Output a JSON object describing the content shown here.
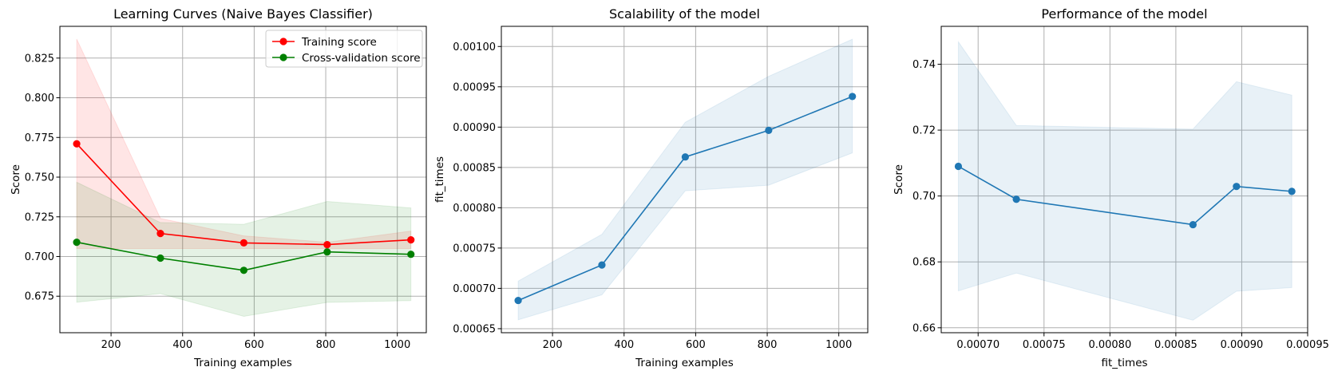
{
  "figure": {
    "background": "#ffffff",
    "colors": {
      "train": "#ff0000",
      "cv": "#008000",
      "line": "#1f77b4",
      "grid": "#b0b0b0"
    }
  },
  "chart_data": [
    {
      "type": "line",
      "title": "Learning Curves (Naive Bayes Classifier)",
      "xlabel": "Training examples",
      "ylabel": "Score",
      "xlim": [
        57,
        1081
      ],
      "ylim": [
        0.652,
        0.845
      ],
      "xticks": [
        200,
        400,
        600,
        800,
        1000
      ],
      "xtick_labels": [
        "200",
        "400",
        "600",
        "800",
        "1000"
      ],
      "yticks": [
        0.675,
        0.7,
        0.725,
        0.75,
        0.775,
        0.8,
        0.825
      ],
      "ytick_labels": [
        "0.675",
        "0.700",
        "0.725",
        "0.750",
        "0.775",
        "0.800",
        "0.825"
      ],
      "grid": true,
      "legend": {
        "position": "top-right",
        "entries": [
          "Training score",
          "Cross-validation score"
        ]
      },
      "series": [
        {
          "name": "Training score",
          "color": "#ff0000",
          "x": [
            104,
            338,
            571,
            804,
            1038
          ],
          "values": [
            0.771,
            0.7145,
            0.7086,
            0.7075,
            0.7105
          ],
          "band_lower": [
            0.705,
            0.705,
            0.705,
            0.705,
            0.705
          ],
          "band_upper": [
            0.837,
            0.724,
            0.713,
            0.709,
            0.716
          ]
        },
        {
          "name": "Cross-validation score",
          "color": "#008000",
          "x": [
            104,
            338,
            571,
            804,
            1038
          ],
          "values": [
            0.709,
            0.699,
            0.6913,
            0.7029,
            0.7014
          ],
          "band_lower": [
            0.6712,
            0.6766,
            0.6623,
            0.6711,
            0.6722
          ],
          "band_upper": [
            0.7468,
            0.7214,
            0.7203,
            0.7347,
            0.7306
          ]
        }
      ]
    },
    {
      "type": "line",
      "title": "Scalability of the model",
      "xlabel": "Training examples",
      "ylabel": "fit_times",
      "xlim": [
        57,
        1081
      ],
      "ylim": [
        0.000645,
        0.001025
      ],
      "xticks": [
        200,
        400,
        600,
        800,
        1000
      ],
      "xtick_labels": [
        "200",
        "400",
        "600",
        "800",
        "1000"
      ],
      "yticks": [
        0.00065,
        0.0007,
        0.00075,
        0.0008,
        0.00085,
        0.0009,
        0.00095,
        0.001
      ],
      "ytick_labels": [
        "0.00065",
        "0.00070",
        "0.00075",
        "0.00080",
        "0.00085",
        "0.00090",
        "0.00095",
        "0.00100"
      ],
      "grid": true,
      "series": [
        {
          "color": "#1f77b4",
          "x": [
            104,
            338,
            571,
            804,
            1038
          ],
          "values": [
            0.000685,
            0.000729,
            0.000863,
            0.000896,
            0.000938
          ],
          "band_lower": [
            0.000661,
            0.000692,
            0.000821,
            0.000828,
            0.000868
          ],
          "band_upper": [
            0.000709,
            0.000767,
            0.000906,
            0.000963,
            0.001009
          ]
        }
      ]
    },
    {
      "type": "line",
      "title": "Performance of the model",
      "xlabel": "fit_times",
      "ylabel": "Score",
      "xlim": [
        0.000672,
        0.00095
      ],
      "ylim": [
        0.6585,
        0.7515
      ],
      "xticks": [
        0.0007,
        0.00075,
        0.0008,
        0.00085,
        0.0009,
        0.00095
      ],
      "xtick_labels": [
        "0.00070",
        "0.00075",
        "0.00080",
        "0.00085",
        "0.00090",
        "0.00095"
      ],
      "yticks": [
        0.66,
        0.68,
        0.7,
        0.72,
        0.74
      ],
      "ytick_labels": [
        "0.66",
        "0.68",
        "0.70",
        "0.72",
        "0.74"
      ],
      "grid": true,
      "series": [
        {
          "color": "#1f77b4",
          "x": [
            0.000685,
            0.000729,
            0.000863,
            0.000896,
            0.000938
          ],
          "values": [
            0.709,
            0.699,
            0.6913,
            0.7029,
            0.7014
          ],
          "band_lower": [
            0.6712,
            0.6766,
            0.6623,
            0.6711,
            0.6722
          ],
          "band_upper": [
            0.7468,
            0.7214,
            0.7203,
            0.7347,
            0.7306
          ]
        }
      ]
    }
  ]
}
